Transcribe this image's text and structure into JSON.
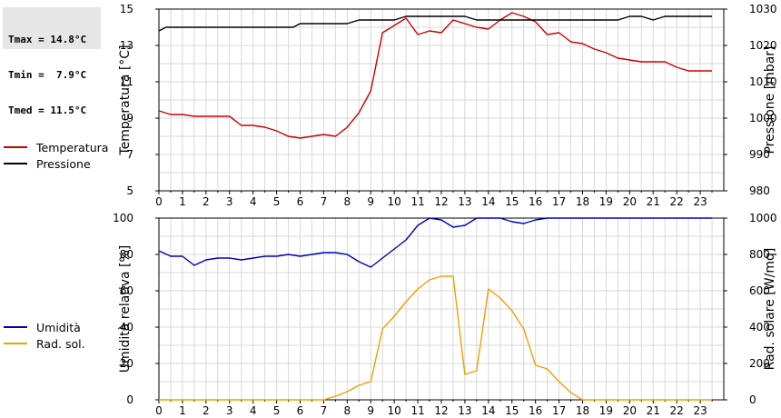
{
  "stats": {
    "tmax": "Tmax = 14.8°C",
    "tmin": "Tmin =  7.9°C",
    "tmed": "Tmed = 11.5°C"
  },
  "legend_top": [
    {
      "label": "Temperatura",
      "color": "#cc0000"
    },
    {
      "label": "Pressione",
      "color": "#000000"
    }
  ],
  "legend_bottom": [
    {
      "label": "Umidità",
      "color": "#0000bb"
    },
    {
      "label": "Rad. sol.",
      "color": "#f0a000"
    }
  ],
  "chart_data": [
    {
      "type": "line",
      "ylabel_left": "Temperatura [°C]",
      "ylabel_right": "Pressione [mbar]",
      "xlim": [
        0,
        24
      ],
      "ylim_left": [
        5,
        15
      ],
      "ylim_right": [
        980,
        1030
      ],
      "xticks": [
        "0",
        "1",
        "2",
        "3",
        "4",
        "5",
        "6",
        "7",
        "8",
        "9",
        "10",
        "11",
        "12",
        "13",
        "14",
        "15",
        "16",
        "17",
        "18",
        "19",
        "20",
        "21",
        "22",
        "23"
      ],
      "yticks_left": [
        "5",
        "7",
        "9",
        "11",
        "13",
        "15"
      ],
      "yticks_right": [
        "980",
        "990",
        "1000",
        "1010",
        "1020",
        "1030"
      ],
      "grid": true,
      "series": [
        {
          "name": "Temperatura",
          "color": "#cc0000",
          "axis": "left",
          "x": [
            0,
            0.5,
            1,
            1.5,
            2,
            2.5,
            3,
            3.5,
            4,
            4.5,
            5,
            5.5,
            6,
            6.5,
            7,
            7.5,
            8,
            8.5,
            9,
            9.5,
            10,
            10.5,
            11,
            11.5,
            12,
            12.5,
            13,
            13.5,
            14,
            14.5,
            15,
            15.5,
            16,
            16.5,
            17,
            17.5,
            18,
            18.5,
            19,
            19.5,
            20,
            20.5,
            21,
            21.5,
            22,
            22.5,
            23,
            23.5
          ],
          "y": [
            9.4,
            9.2,
            9.2,
            9.1,
            9.1,
            9.1,
            9.1,
            8.6,
            8.6,
            8.5,
            8.3,
            8.0,
            7.9,
            8.0,
            8.1,
            8.0,
            8.5,
            9.3,
            10.5,
            13.7,
            14.1,
            14.5,
            13.6,
            13.8,
            13.7,
            14.4,
            14.2,
            14.0,
            13.9,
            14.4,
            14.8,
            14.6,
            14.3,
            13.6,
            13.7,
            13.2,
            13.1,
            12.8,
            12.6,
            12.3,
            12.2,
            12.1,
            12.1,
            12.1,
            11.8,
            11.6,
            11.6,
            11.6
          ]
        },
        {
          "name": "Pressione",
          "color": "#000000",
          "axis": "right",
          "x": [
            0,
            0.3,
            0.5,
            1,
            2,
            3,
            4,
            5,
            5.7,
            6,
            6.5,
            7,
            7.5,
            8,
            8.5,
            9,
            9.5,
            10,
            10.5,
            11,
            11.5,
            12,
            12.5,
            13,
            13.5,
            14,
            14.5,
            15,
            15.5,
            16,
            16.5,
            17,
            17.5,
            18,
            18.5,
            19,
            19.5,
            20,
            20.5,
            21,
            21.5,
            22,
            22.5,
            23,
            23.5
          ],
          "y": [
            1024,
            1025,
            1025,
            1025,
            1025,
            1025,
            1025,
            1025,
            1025,
            1026,
            1026,
            1026,
            1026,
            1026,
            1027,
            1027,
            1027,
            1027,
            1028,
            1028,
            1028,
            1028,
            1028,
            1028,
            1027,
            1027,
            1027,
            1027,
            1027,
            1027,
            1027,
            1027,
            1027,
            1027,
            1027,
            1027,
            1027,
            1028,
            1028,
            1027,
            1028,
            1028,
            1028,
            1028,
            1028
          ]
        }
      ]
    },
    {
      "type": "line",
      "ylabel_left": "Umidità relativa [%]",
      "ylabel_right": "Rad. solare [W/mq]",
      "xlim": [
        0,
        24
      ],
      "ylim_left": [
        0,
        100
      ],
      "ylim_right": [
        0,
        1000
      ],
      "xticks": [
        "0",
        "1",
        "2",
        "3",
        "4",
        "5",
        "6",
        "7",
        "8",
        "9",
        "10",
        "11",
        "12",
        "13",
        "14",
        "15",
        "16",
        "17",
        "18",
        "19",
        "20",
        "21",
        "22",
        "23"
      ],
      "yticks_left": [
        "0",
        "20",
        "40",
        "60",
        "80",
        "100"
      ],
      "yticks_right": [
        "0",
        "200",
        "400",
        "600",
        "800",
        "1000"
      ],
      "grid": true,
      "series": [
        {
          "name": "Umidità",
          "color": "#0000bb",
          "axis": "left",
          "x": [
            0,
            0.5,
            1,
            1.5,
            2,
            2.5,
            3,
            3.5,
            4,
            4.5,
            5,
            5.5,
            6,
            6.5,
            7,
            7.5,
            8,
            8.5,
            9,
            9.5,
            10,
            10.5,
            11,
            11.5,
            12,
            12.5,
            13,
            13.5,
            14,
            14.5,
            15,
            15.5,
            16,
            16.5,
            17,
            17.5,
            18,
            18.5,
            19,
            19.5,
            20,
            20.5,
            21,
            21.5,
            22,
            22.5,
            23,
            23.5
          ],
          "y": [
            82,
            79,
            79,
            74,
            77,
            78,
            78,
            77,
            78,
            79,
            79,
            80,
            79,
            80,
            81,
            81,
            80,
            76,
            73,
            78,
            83,
            88,
            96,
            100,
            99,
            95,
            96,
            100,
            100,
            100,
            98,
            97,
            99,
            100,
            100,
            100,
            100,
            100,
            100,
            100,
            100,
            100,
            100,
            100,
            100,
            100,
            100,
            100
          ]
        },
        {
          "name": "Rad. sol.",
          "color": "#f0a000",
          "axis": "right",
          "x": [
            0,
            1,
            2,
            3,
            4,
            5,
            6,
            7,
            7.5,
            8,
            8.5,
            9,
            9.5,
            10,
            10.5,
            11,
            11.5,
            12,
            12.5,
            13,
            13.5,
            14,
            14.5,
            15,
            15.5,
            16,
            16.5,
            17,
            17.5,
            18,
            18.5,
            19,
            20,
            21,
            22,
            23,
            23.5
          ],
          "y": [
            0,
            0,
            0,
            0,
            0,
            0,
            0,
            0,
            20,
            45,
            80,
            100,
            390,
            460,
            540,
            610,
            660,
            680,
            680,
            140,
            160,
            610,
            560,
            490,
            390,
            190,
            170,
            100,
            40,
            0,
            0,
            0,
            0,
            0,
            0,
            0,
            0
          ]
        }
      ]
    }
  ]
}
